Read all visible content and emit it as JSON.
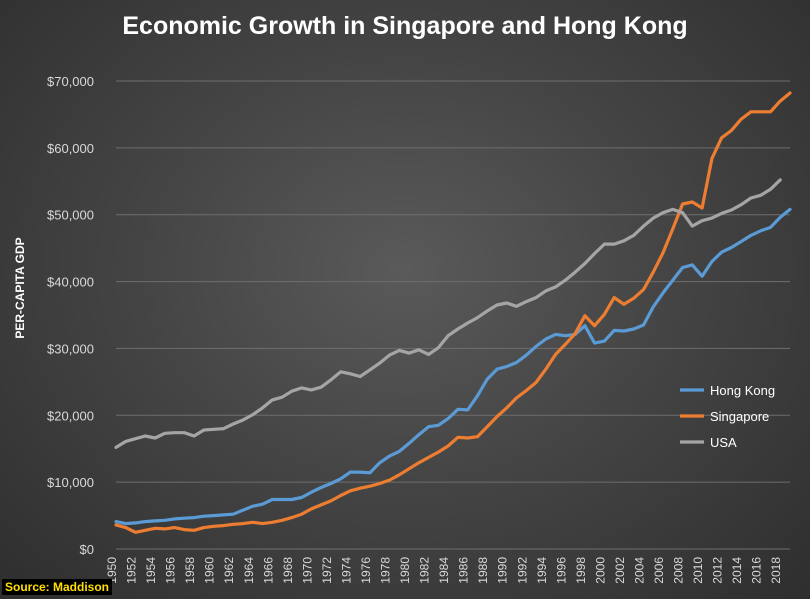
{
  "chart_data": {
    "type": "line",
    "title": "Economic Growth in Singapore and Hong Kong",
    "ylabel": "PER-CAPITA GDP",
    "xlabel": "",
    "ylim": [
      0,
      70000
    ],
    "yticks": [
      0,
      10000,
      20000,
      30000,
      40000,
      50000,
      60000,
      70000
    ],
    "ytick_labels": [
      "$0",
      "$10,000",
      "$20,000",
      "$30,000",
      "$40,000",
      "$50,000",
      "$60,000",
      "$70,000"
    ],
    "xlim": [
      1950,
      2018
    ],
    "xtick_labels": [
      "1950",
      "1952",
      "1954",
      "1956",
      "1958",
      "1960",
      "1962",
      "1964",
      "1966",
      "1968",
      "1970",
      "1972",
      "1974",
      "1976",
      "1978",
      "1980",
      "1982",
      "1984",
      "1986",
      "1988",
      "1990",
      "1992",
      "1994",
      "1996",
      "1998",
      "2000",
      "2002",
      "2004",
      "2006",
      "2008",
      "2010",
      "2012",
      "2014",
      "2016",
      "2018"
    ],
    "grid": true,
    "legend_position": "right",
    "series": [
      {
        "name": "Hong Kong",
        "color": "#5b9bd5",
        "points": [
          [
            1950,
            4100
          ],
          [
            1951,
            3800
          ],
          [
            1952,
            3900
          ],
          [
            1953,
            4100
          ],
          [
            1954,
            4200
          ],
          [
            1955,
            4300
          ],
          [
            1956,
            4500
          ],
          [
            1957,
            4600
          ],
          [
            1958,
            4700
          ],
          [
            1959,
            4900
          ],
          [
            1960,
            5000
          ],
          [
            1961,
            5100
          ],
          [
            1962,
            5200
          ],
          [
            1963,
            5800
          ],
          [
            1964,
            6400
          ],
          [
            1965,
            6700
          ],
          [
            1966,
            7400
          ],
          [
            1967,
            7400
          ],
          [
            1968,
            7400
          ],
          [
            1969,
            7700
          ],
          [
            1970,
            8500
          ],
          [
            1971,
            9200
          ],
          [
            1972,
            9800
          ],
          [
            1973,
            10500
          ],
          [
            1974,
            11500
          ],
          [
            1975,
            11500
          ],
          [
            1976,
            11400
          ],
          [
            1977,
            12900
          ],
          [
            1978,
            13900
          ],
          [
            1979,
            14600
          ],
          [
            1980,
            15800
          ],
          [
            1981,
            17100
          ],
          [
            1982,
            18300
          ],
          [
            1983,
            18500
          ],
          [
            1984,
            19500
          ],
          [
            1985,
            20900
          ],
          [
            1986,
            20800
          ],
          [
            1987,
            22900
          ],
          [
            1988,
            25400
          ],
          [
            1989,
            26900
          ],
          [
            1990,
            27300
          ],
          [
            1991,
            27900
          ],
          [
            1992,
            29000
          ],
          [
            1993,
            30300
          ],
          [
            1994,
            31400
          ],
          [
            1995,
            32100
          ],
          [
            1996,
            31900
          ],
          [
            1997,
            32100
          ],
          [
            1998,
            33400
          ],
          [
            1999,
            30800
          ],
          [
            2000,
            31100
          ],
          [
            2001,
            32700
          ],
          [
            2002,
            32600
          ],
          [
            2003,
            32900
          ],
          [
            2004,
            33500
          ],
          [
            2005,
            36200
          ],
          [
            2006,
            38300
          ],
          [
            2007,
            40200
          ],
          [
            2008,
            42100
          ],
          [
            2009,
            42500
          ],
          [
            2010,
            40800
          ],
          [
            2011,
            43000
          ],
          [
            2012,
            44400
          ],
          [
            2013,
            45100
          ],
          [
            2014,
            46000
          ],
          [
            2015,
            46900
          ],
          [
            2016,
            47600
          ],
          [
            2017,
            48100
          ],
          [
            2018,
            49600
          ],
          [
            2019,
            50800
          ]
        ]
      },
      {
        "name": "Singapore",
        "color": "#ed7d31",
        "points": [
          [
            1950,
            3600
          ],
          [
            1951,
            3200
          ],
          [
            1952,
            2500
          ],
          [
            1953,
            2800
          ],
          [
            1954,
            3100
          ],
          [
            1955,
            3000
          ],
          [
            1956,
            3200
          ],
          [
            1957,
            2900
          ],
          [
            1958,
            2800
          ],
          [
            1959,
            3200
          ],
          [
            1960,
            3400
          ],
          [
            1961,
            3500
          ],
          [
            1962,
            3700
          ],
          [
            1963,
            3800
          ],
          [
            1964,
            4000
          ],
          [
            1965,
            3800
          ],
          [
            1966,
            4000
          ],
          [
            1967,
            4300
          ],
          [
            1968,
            4700
          ],
          [
            1969,
            5200
          ],
          [
            1970,
            6000
          ],
          [
            1971,
            6600
          ],
          [
            1972,
            7200
          ],
          [
            1973,
            8000
          ],
          [
            1974,
            8700
          ],
          [
            1975,
            9100
          ],
          [
            1976,
            9400
          ],
          [
            1977,
            9800
          ],
          [
            1978,
            10300
          ],
          [
            1979,
            11100
          ],
          [
            1980,
            12000
          ],
          [
            1981,
            12900
          ],
          [
            1982,
            13700
          ],
          [
            1983,
            14500
          ],
          [
            1984,
            15400
          ],
          [
            1985,
            16700
          ],
          [
            1986,
            16600
          ],
          [
            1987,
            16800
          ],
          [
            1988,
            18300
          ],
          [
            1989,
            19800
          ],
          [
            1990,
            21100
          ],
          [
            1991,
            22600
          ],
          [
            1992,
            23700
          ],
          [
            1993,
            24900
          ],
          [
            1994,
            26900
          ],
          [
            1995,
            29100
          ],
          [
            1996,
            30600
          ],
          [
            1997,
            32200
          ],
          [
            1998,
            34900
          ],
          [
            1999,
            33400
          ],
          [
            2000,
            35100
          ],
          [
            2001,
            37600
          ],
          [
            2002,
            36600
          ],
          [
            2003,
            37500
          ],
          [
            2004,
            38800
          ],
          [
            2005,
            41400
          ],
          [
            2006,
            44300
          ],
          [
            2007,
            47900
          ],
          [
            2008,
            51600
          ],
          [
            2009,
            51900
          ],
          [
            2010,
            51000
          ],
          [
            2011,
            58400
          ],
          [
            2012,
            61500
          ],
          [
            2013,
            62600
          ],
          [
            2014,
            64300
          ],
          [
            2015,
            65400
          ],
          [
            2016,
            65400
          ],
          [
            2017,
            65400
          ],
          [
            2018,
            67000
          ],
          [
            2019,
            68200
          ]
        ]
      },
      {
        "name": "USA",
        "color": "#a5a5a5",
        "points": [
          [
            1950,
            15200
          ],
          [
            1951,
            16100
          ],
          [
            1952,
            16500
          ],
          [
            1953,
            16900
          ],
          [
            1954,
            16600
          ],
          [
            1955,
            17300
          ],
          [
            1956,
            17400
          ],
          [
            1957,
            17400
          ],
          [
            1958,
            16900
          ],
          [
            1959,
            17800
          ],
          [
            1960,
            17900
          ],
          [
            1961,
            18000
          ],
          [
            1962,
            18700
          ],
          [
            1963,
            19300
          ],
          [
            1964,
            20100
          ],
          [
            1965,
            21100
          ],
          [
            1966,
            22300
          ],
          [
            1967,
            22700
          ],
          [
            1968,
            23600
          ],
          [
            1969,
            24100
          ],
          [
            1970,
            23800
          ],
          [
            1971,
            24200
          ],
          [
            1972,
            25300
          ],
          [
            1973,
            26500
          ],
          [
            1974,
            26200
          ],
          [
            1975,
            25800
          ],
          [
            1976,
            26800
          ],
          [
            1977,
            27800
          ],
          [
            1978,
            29000
          ],
          [
            1979,
            29700
          ],
          [
            1980,
            29300
          ],
          [
            1981,
            29800
          ],
          [
            1982,
            29100
          ],
          [
            1983,
            30100
          ],
          [
            1984,
            31900
          ],
          [
            1985,
            32900
          ],
          [
            1986,
            33800
          ],
          [
            1987,
            34600
          ],
          [
            1988,
            35600
          ],
          [
            1989,
            36500
          ],
          [
            1990,
            36800
          ],
          [
            1991,
            36300
          ],
          [
            1992,
            37000
          ],
          [
            1993,
            37600
          ],
          [
            1994,
            38600
          ],
          [
            1995,
            39200
          ],
          [
            1996,
            40200
          ],
          [
            1997,
            41400
          ],
          [
            1998,
            42700
          ],
          [
            1999,
            44200
          ],
          [
            2000,
            45600
          ],
          [
            2001,
            45600
          ],
          [
            2002,
            46100
          ],
          [
            2003,
            46900
          ],
          [
            2004,
            48300
          ],
          [
            2005,
            49500
          ],
          [
            2006,
            50300
          ],
          [
            2007,
            50800
          ],
          [
            2008,
            50300
          ],
          [
            2009,
            48300
          ],
          [
            2010,
            49100
          ],
          [
            2011,
            49500
          ],
          [
            2012,
            50200
          ],
          [
            2013,
            50700
          ],
          [
            2014,
            51500
          ],
          [
            2015,
            52500
          ],
          [
            2016,
            52900
          ],
          [
            2017,
            53800
          ],
          [
            2018,
            55200
          ]
        ]
      }
    ]
  },
  "source_label": "Source: Maddison"
}
